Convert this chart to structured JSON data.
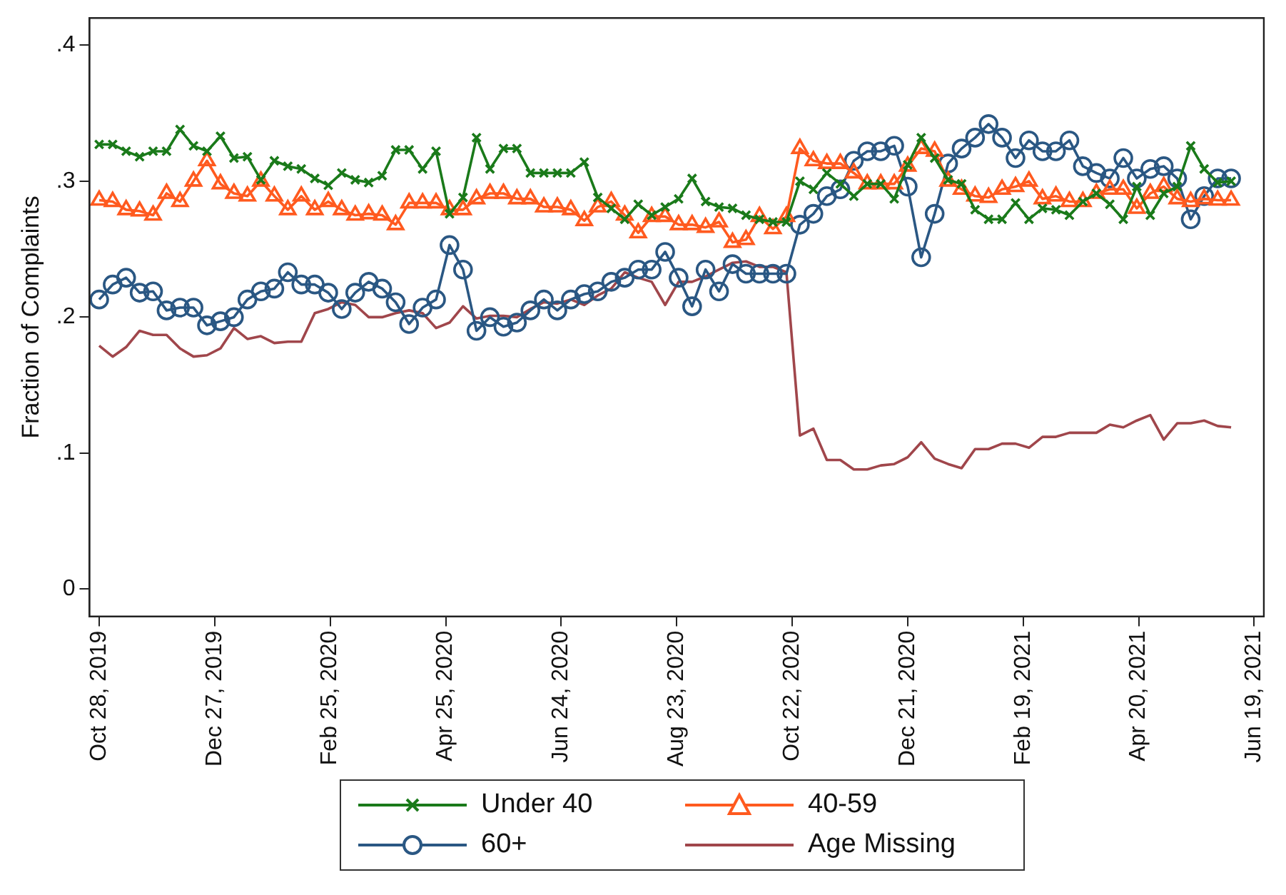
{
  "chart_data": {
    "type": "line",
    "ylabel": "Fraction of Complaints",
    "x": [
      "2019-10-28",
      "2019-11-04",
      "2019-11-11",
      "2019-11-18",
      "2019-11-25",
      "2019-12-02",
      "2019-12-09",
      "2019-12-16",
      "2019-12-23",
      "2019-12-30",
      "2020-01-06",
      "2020-01-13",
      "2020-01-20",
      "2020-01-27",
      "2020-02-03",
      "2020-02-10",
      "2020-02-17",
      "2020-02-24",
      "2020-03-02",
      "2020-03-09",
      "2020-03-16",
      "2020-03-23",
      "2020-03-30",
      "2020-04-06",
      "2020-04-13",
      "2020-04-20",
      "2020-04-27",
      "2020-05-04",
      "2020-05-11",
      "2020-05-18",
      "2020-05-25",
      "2020-06-01",
      "2020-06-08",
      "2020-06-15",
      "2020-06-22",
      "2020-06-29",
      "2020-07-06",
      "2020-07-13",
      "2020-07-20",
      "2020-07-27",
      "2020-08-03",
      "2020-08-10",
      "2020-08-17",
      "2020-08-24",
      "2020-08-31",
      "2020-09-07",
      "2020-09-14",
      "2020-09-21",
      "2020-09-28",
      "2020-10-05",
      "2020-10-12",
      "2020-10-19",
      "2020-10-26",
      "2020-11-02",
      "2020-11-09",
      "2020-11-16",
      "2020-11-23",
      "2020-11-30",
      "2020-12-07",
      "2020-12-14",
      "2020-12-21",
      "2020-12-28",
      "2021-01-04",
      "2021-01-11",
      "2021-01-18",
      "2021-01-25",
      "2021-02-01",
      "2021-02-08",
      "2021-02-15",
      "2021-02-22",
      "2021-03-01",
      "2021-03-08",
      "2021-03-15",
      "2021-03-22",
      "2021-03-29",
      "2021-04-05",
      "2021-04-12",
      "2021-04-19",
      "2021-04-26",
      "2021-05-03",
      "2021-05-10",
      "2021-05-17",
      "2021-05-24",
      "2021-05-31",
      "2021-06-07"
    ],
    "series": [
      {
        "name": "Under 40",
        "color": "#1a7a1a",
        "marker": "cross",
        "values": [
          0.327,
          0.327,
          0.322,
          0.318,
          0.322,
          0.322,
          0.338,
          0.326,
          0.322,
          0.333,
          0.317,
          0.318,
          0.301,
          0.315,
          0.311,
          0.309,
          0.302,
          0.297,
          0.306,
          0.301,
          0.299,
          0.304,
          0.323,
          0.323,
          0.309,
          0.322,
          0.276,
          0.288,
          0.332,
          0.309,
          0.324,
          0.324,
          0.306,
          0.306,
          0.306,
          0.306,
          0.314,
          0.288,
          0.28,
          0.272,
          0.283,
          0.275,
          0.281,
          0.287,
          0.302,
          0.285,
          0.281,
          0.28,
          0.275,
          0.272,
          0.27,
          0.27,
          0.3,
          0.294,
          0.306,
          0.298,
          0.289,
          0.298,
          0.298,
          0.287,
          0.312,
          0.332,
          0.317,
          0.301,
          0.298,
          0.279,
          0.272,
          0.272,
          0.284,
          0.272,
          0.28,
          0.279,
          0.275,
          0.285,
          0.291,
          0.283,
          0.272,
          0.296,
          0.275,
          0.291,
          0.296,
          0.326,
          0.309,
          0.299,
          0.3
        ]
      },
      {
        "name": "40-59",
        "color": "#ff5a1f",
        "marker": "triangle",
        "values": [
          0.286,
          0.285,
          0.279,
          0.278,
          0.275,
          0.291,
          0.285,
          0.3,
          0.315,
          0.298,
          0.291,
          0.289,
          0.3,
          0.289,
          0.279,
          0.289,
          0.279,
          0.285,
          0.279,
          0.275,
          0.276,
          0.275,
          0.268,
          0.284,
          0.284,
          0.284,
          0.279,
          0.279,
          0.287,
          0.291,
          0.291,
          0.287,
          0.287,
          0.281,
          0.281,
          0.279,
          0.271,
          0.281,
          0.285,
          0.275,
          0.262,
          0.274,
          0.274,
          0.268,
          0.268,
          0.266,
          0.27,
          0.255,
          0.257,
          0.274,
          0.265,
          0.274,
          0.324,
          0.315,
          0.313,
          0.313,
          0.306,
          0.298,
          0.298,
          0.298,
          0.311,
          0.324,
          0.322,
          0.3,
          0.294,
          0.289,
          0.288,
          0.294,
          0.296,
          0.3,
          0.287,
          0.289,
          0.285,
          0.285,
          0.291,
          0.294,
          0.294,
          0.28,
          0.291,
          0.296,
          0.287,
          0.285,
          0.287,
          0.286,
          0.286
        ]
      },
      {
        "name": "60+",
        "color": "#2a5783",
        "marker": "circle",
        "values": [
          0.213,
          0.224,
          0.229,
          0.218,
          0.219,
          0.205,
          0.207,
          0.207,
          0.194,
          0.197,
          0.2,
          0.213,
          0.219,
          0.221,
          0.233,
          0.224,
          0.224,
          0.218,
          0.206,
          0.218,
          0.226,
          0.221,
          0.211,
          0.195,
          0.207,
          0.213,
          0.253,
          0.235,
          0.19,
          0.2,
          0.193,
          0.196,
          0.205,
          0.213,
          0.205,
          0.213,
          0.217,
          0.219,
          0.226,
          0.229,
          0.235,
          0.235,
          0.248,
          0.229,
          0.208,
          0.235,
          0.219,
          0.239,
          0.232,
          0.232,
          0.232,
          0.232,
          0.268,
          0.276,
          0.289,
          0.294,
          0.315,
          0.322,
          0.322,
          0.326,
          0.296,
          0.244,
          0.276,
          0.313,
          0.324,
          0.332,
          0.342,
          0.332,
          0.317,
          0.33,
          0.322,
          0.322,
          0.33,
          0.311,
          0.306,
          0.302,
          0.317,
          0.302,
          0.309,
          0.311,
          0.302,
          0.272,
          0.289,
          0.302,
          0.302
        ]
      },
      {
        "name": "Age Missing",
        "color": "#a0464b",
        "marker": "none",
        "values": [
          0.179,
          0.171,
          0.178,
          0.19,
          0.187,
          0.187,
          0.177,
          0.171,
          0.172,
          0.177,
          0.192,
          0.184,
          0.186,
          0.181,
          0.182,
          0.182,
          0.203,
          0.206,
          0.211,
          0.209,
          0.2,
          0.2,
          0.203,
          0.205,
          0.203,
          0.192,
          0.196,
          0.208,
          0.199,
          0.201,
          0.201,
          0.2,
          0.206,
          0.211,
          0.21,
          0.213,
          0.209,
          0.216,
          0.221,
          0.233,
          0.229,
          0.226,
          0.209,
          0.226,
          0.226,
          0.23,
          0.235,
          0.24,
          0.241,
          0.237,
          0.237,
          0.233,
          0.113,
          0.118,
          0.095,
          0.095,
          0.088,
          0.088,
          0.091,
          0.092,
          0.097,
          0.108,
          0.096,
          0.092,
          0.089,
          0.103,
          0.103,
          0.107,
          0.107,
          0.104,
          0.112,
          0.112,
          0.115,
          0.115,
          0.115,
          0.121,
          0.119,
          0.124,
          0.128,
          0.11,
          0.122,
          0.122,
          0.124,
          0.12,
          0.119
        ]
      }
    ],
    "xlim": [
      "2019-10-23",
      "2021-06-24"
    ],
    "xticks": [
      {
        "value": "2019-10-28",
        "label": "Oct 28, 2019"
      },
      {
        "value": "2019-12-27",
        "label": "Dec 27, 2019"
      },
      {
        "value": "2020-02-25",
        "label": "Feb 25, 2020"
      },
      {
        "value": "2020-04-25",
        "label": "Apr 25, 2020"
      },
      {
        "value": "2020-06-24",
        "label": "Jun 24, 2020"
      },
      {
        "value": "2020-08-23",
        "label": "Aug 23, 2020"
      },
      {
        "value": "2020-10-22",
        "label": "Oct 22, 2020"
      },
      {
        "value": "2020-12-21",
        "label": "Dec 21, 2020"
      },
      {
        "value": "2021-02-19",
        "label": "Feb 19, 2021"
      },
      {
        "value": "2021-04-20",
        "label": "Apr 20, 2021"
      },
      {
        "value": "2021-06-19",
        "label": "Jun 19, 2021"
      }
    ],
    "ylim": [
      -0.02,
      0.42
    ],
    "yticks": [
      0,
      {
        "value": 0.1,
        "label": ".1"
      },
      {
        "value": 0.2,
        "label": ".2"
      },
      {
        "value": 0.3,
        "label": ".3"
      },
      {
        "value": 0.4,
        "label": ".4"
      }
    ],
    "grid": false,
    "legend": "bottom",
    "line_style": "solid"
  }
}
